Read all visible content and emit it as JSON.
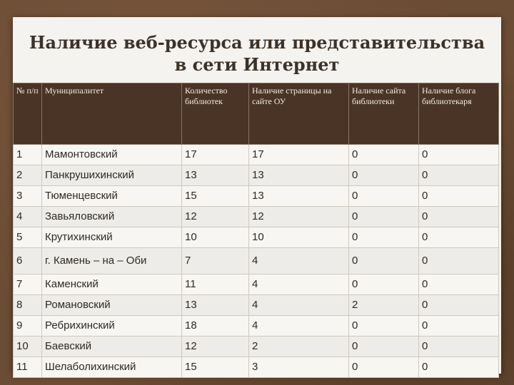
{
  "title": {
    "line1": "Наличие веб-ресурса или представительства",
    "line2": "в сети Интернет"
  },
  "columns": [
    "№ п/п",
    "Муниципалитет",
    "Количество библиотек",
    "Наличие страницы на сайте ОУ",
    "Наличие сайта библиотеки",
    "Наличие блога библиотекаря"
  ],
  "rows": [
    [
      "1",
      "Мамонтовский",
      "17",
      "17",
      "0",
      "0"
    ],
    [
      "2",
      "Панкрушихинский",
      "13",
      "13",
      "0",
      "0"
    ],
    [
      "3",
      "Тюменцевский",
      "15",
      "13",
      "0",
      "0"
    ],
    [
      "4",
      "Завьяловский",
      "12",
      "12",
      "0",
      "0"
    ],
    [
      "5",
      "Крутихинский",
      "10",
      "10",
      "0",
      "0"
    ],
    [
      "6",
      "г. Камень – на – Оби",
      "7",
      "4",
      "0",
      "0"
    ],
    [
      "7",
      "Каменский",
      "11",
      "4",
      "0",
      "0"
    ],
    [
      "8",
      "Романовский",
      "13",
      "4",
      "2",
      "0"
    ],
    [
      "9",
      "Ребрихинский",
      "18",
      "4",
      "0",
      "0"
    ],
    [
      "10",
      "Баевский",
      "12",
      "2",
      "0",
      "0"
    ],
    [
      "11",
      "Шелаболихинский",
      "15",
      "3",
      "0",
      "0"
    ]
  ]
}
